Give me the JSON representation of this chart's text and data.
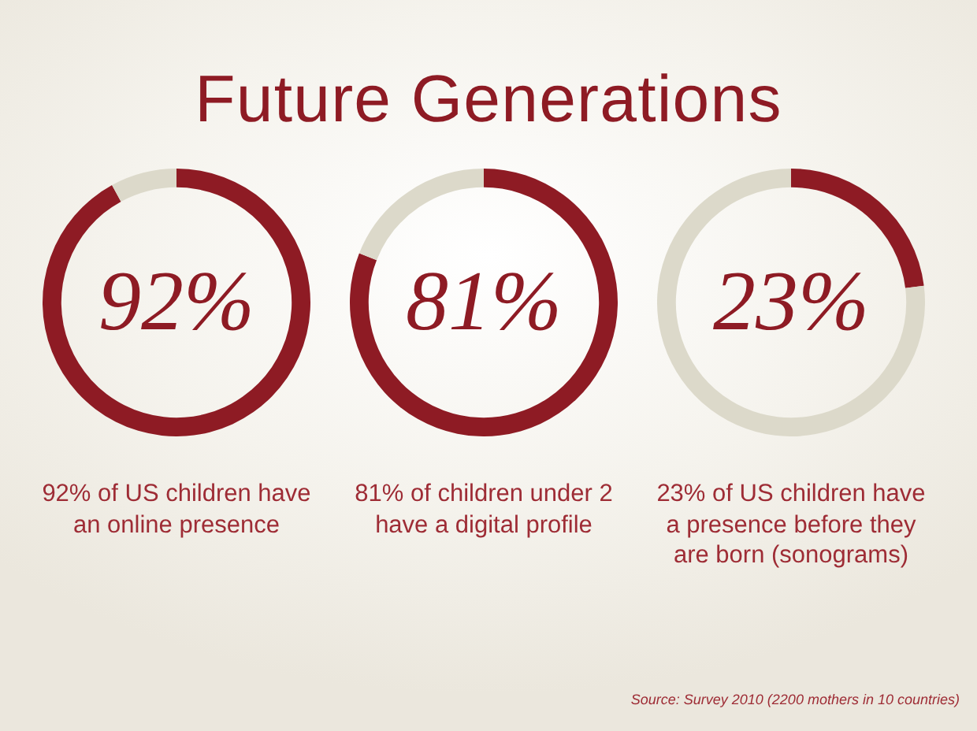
{
  "chart_data": [
    {
      "type": "donut",
      "title": "Future Generations",
      "categories": [
        null,
        null
      ],
      "values": [
        92,
        8
      ],
      "colors": [
        "#8e1b24",
        "#dcd9ca"
      ],
      "value_labels": [
        "92%",
        null
      ],
      "annotations": [
        "92% of US children have an online presence"
      ]
    },
    {
      "type": "donut",
      "categories": [
        null,
        null
      ],
      "values": [
        81,
        19
      ],
      "colors": [
        "#8e1b24",
        "#dcd9ca"
      ],
      "value_labels": [
        "81%",
        null
      ],
      "annotations": [
        "81% of children under 2 have a digital profile"
      ]
    },
    {
      "type": "donut",
      "categories": [
        null,
        null
      ],
      "values": [
        23,
        77
      ],
      "colors": [
        "#8e1b24",
        "#dcd9ca"
      ],
      "value_labels": [
        "23%",
        null
      ],
      "annotations": [
        "23% of US children have a presence before they are born (sonograms)",
        "Source: Survey 2010 (2200 mothers in 10 countries)"
      ]
    }
  ]
}
